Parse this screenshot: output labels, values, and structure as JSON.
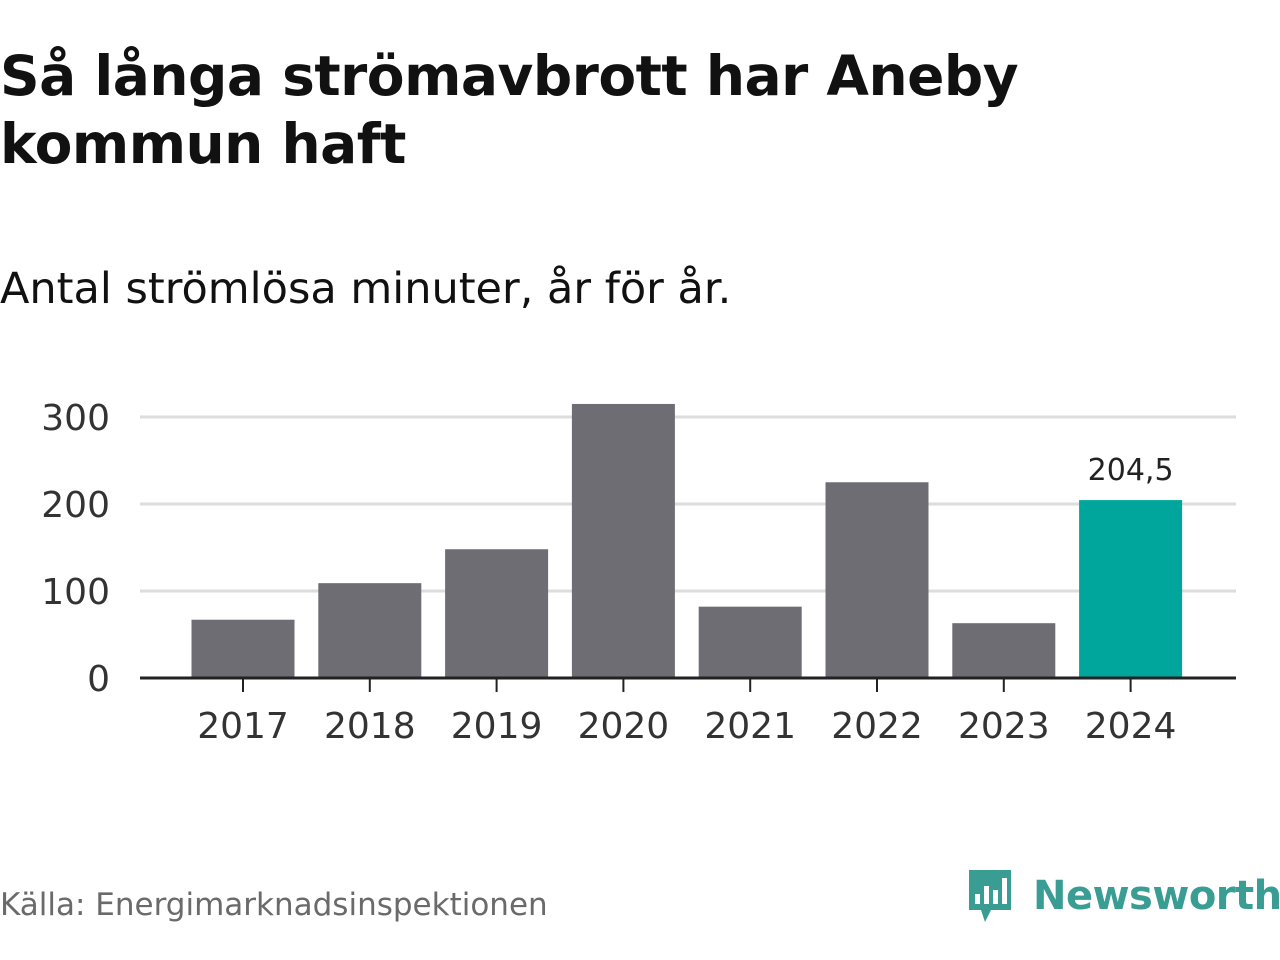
{
  "title": "Så långa strömavbrott har Aneby kommun haft",
  "subtitle": "Antal strömlösa minuter, år för år.",
  "source": "Källa: Energimarknadsinspektionen",
  "brand": {
    "name": "Newsworthy",
    "icon": "newsworthy-logo-icon",
    "color": "#3a9d94"
  },
  "chart_data": {
    "type": "bar",
    "categories": [
      "2017",
      "2018",
      "2019",
      "2020",
      "2021",
      "2022",
      "2023",
      "2024"
    ],
    "values": [
      67,
      109,
      148,
      315,
      82,
      225,
      63,
      204.5
    ],
    "ylim": [
      0,
      300
    ],
    "yticks": [
      "0",
      "100",
      "200",
      "300"
    ],
    "grid": true,
    "highlight": {
      "category": "2024",
      "label": "204,5"
    },
    "colors": {
      "bar": "#6e6d73",
      "highlight": "#00a69c",
      "grid": "#dddddd",
      "axis": "#222222"
    }
  }
}
